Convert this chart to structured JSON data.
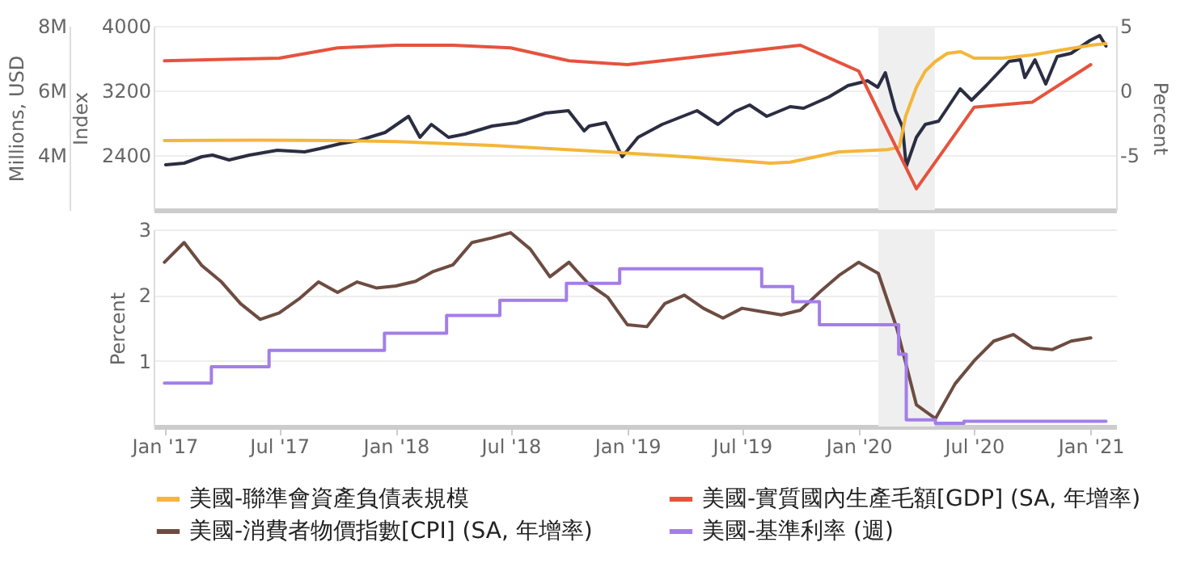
{
  "chart_data": [
    {
      "type": "line",
      "xlim": [
        "2016-12-15",
        "2021-02-10"
      ],
      "ylabel": "Index",
      "ylim": [
        1720,
        4000
      ],
      "yticks": [
        2400,
        3200,
        4000
      ],
      "y2label": "Percent",
      "y2lim": [
        -9.25,
        5
      ],
      "y2ticks": [
        -5,
        0,
        5
      ],
      "y3label": "Millions, USD",
      "y3lim": [
        2300000,
        8000000
      ],
      "y3ticks": [
        {
          "value": 4000000,
          "label": "4M"
        },
        {
          "value": 6000000,
          "label": "6M"
        },
        {
          "value": 8000000,
          "label": "8M"
        }
      ],
      "grid": "y",
      "legend": "bottom",
      "tick_labels": "y",
      "bands": [
        {
          "axis": "x",
          "from": "2020-02-01",
          "to": "2020-04-30",
          "color": "#efefef"
        }
      ],
      "series": [
        {
          "color": "#2b2d42",
          "axis": "y",
          "x": [
            "2017-01-03",
            "2017-02-01",
            "2017-03-01",
            "2017-03-18",
            "2017-04-13",
            "2017-05-15",
            "2017-06-28",
            "2017-08-10",
            "2017-09-03",
            "2017-10-05",
            "2017-11-03",
            "2017-12-15",
            "2018-01-21",
            "2018-02-08",
            "2018-02-26",
            "2018-03-25",
            "2018-04-20",
            "2018-06-02",
            "2018-07-10",
            "2018-08-25",
            "2018-09-30",
            "2018-10-25",
            "2018-11-02",
            "2018-11-28",
            "2018-12-24",
            "2019-01-18",
            "2019-02-25",
            "2019-04-21",
            "2019-05-24",
            "2019-06-20",
            "2019-07-13",
            "2019-08-09",
            "2019-09-15",
            "2019-10-06",
            "2019-11-15",
            "2019-12-15",
            "2020-01-15",
            "2020-01-31",
            "2020-02-12",
            "2020-02-28",
            "2020-03-10",
            "2020-03-16",
            "2020-04-01",
            "2020-04-15",
            "2020-05-06",
            "2020-06-09",
            "2020-06-27",
            "2020-07-20",
            "2020-08-25",
            "2020-09-12",
            "2020-09-19",
            "2020-10-05",
            "2020-10-22",
            "2020-11-09",
            "2020-12-01",
            "2020-12-31",
            "2021-01-15",
            "2021-01-25"
          ],
          "values": [
            2280,
            2300,
            2380,
            2400,
            2340,
            2400,
            2460,
            2440,
            2480,
            2540,
            2580,
            2680,
            2880,
            2620,
            2780,
            2620,
            2660,
            2760,
            2800,
            2920,
            2950,
            2700,
            2760,
            2800,
            2380,
            2620,
            2780,
            2950,
            2780,
            2940,
            3020,
            2880,
            3000,
            2980,
            3120,
            3260,
            3320,
            3240,
            3420,
            2950,
            2750,
            2260,
            2620,
            2780,
            2820,
            3220,
            3080,
            3260,
            3560,
            3580,
            3360,
            3580,
            3280,
            3620,
            3660,
            3820,
            3880,
            3750
          ]
        },
        {
          "name": "美國-聯準會資產負債表規模",
          "color": "#f4b63a",
          "axis": "y3",
          "x": [
            "2017-01-01",
            "2017-06-01",
            "2017-10-01",
            "2018-01-01",
            "2018-06-01",
            "2018-12-01",
            "2019-04-01",
            "2019-08-15",
            "2019-09-15",
            "2019-12-01",
            "2020-02-15",
            "2020-03-05",
            "2020-03-15",
            "2020-04-01",
            "2020-04-15",
            "2020-05-01",
            "2020-05-20",
            "2020-06-10",
            "2020-07-01",
            "2020-08-15",
            "2020-10-01",
            "2020-11-15",
            "2021-01-01",
            "2021-01-25"
          ],
          "values": [
            4450000,
            4460000,
            4450000,
            4420000,
            4300000,
            4100000,
            3950000,
            3750000,
            3780000,
            4100000,
            4170000,
            4240000,
            5200000,
            6100000,
            6600000,
            6900000,
            7150000,
            7200000,
            7000000,
            7000000,
            7100000,
            7250000,
            7400000,
            7450000
          ]
        },
        {
          "name": "美國-實質國內生產毛額[GDP] (SA, 年增率)",
          "color": "#e5533d",
          "axis": "y2",
          "x": [
            "2017-01-01",
            "2017-07-01",
            "2017-10-01",
            "2018-01-01",
            "2018-04-01",
            "2018-07-01",
            "2018-10-01",
            "2019-01-01",
            "2019-10-01",
            "2020-01-01",
            "2020-04-01",
            "2020-07-01",
            "2020-10-01",
            "2021-01-01"
          ],
          "values": [
            2.3,
            2.5,
            3.3,
            3.5,
            3.5,
            3.3,
            2.3,
            2.0,
            3.5,
            1.5,
            -7.6,
            -1.3,
            -0.9,
            2.0
          ]
        }
      ]
    },
    {
      "type": "line",
      "xlim": [
        "2016-12-15",
        "2021-02-10"
      ],
      "xticks": [
        {
          "value": "2017-01-01",
          "label": "Jan '17"
        },
        {
          "value": "2017-07-01",
          "label": "Jul '17"
        },
        {
          "value": "2018-01-01",
          "label": "Jan '18"
        },
        {
          "value": "2018-07-01",
          "label": "Jul '18"
        },
        {
          "value": "2019-01-01",
          "label": "Jan '19"
        },
        {
          "value": "2019-07-01",
          "label": "Jul '19"
        },
        {
          "value": "2020-01-01",
          "label": "Jan '20"
        },
        {
          "value": "2020-07-01",
          "label": "Jul '20"
        },
        {
          "value": "2021-01-01",
          "label": "Jan '21"
        }
      ],
      "ylabel": "Percent",
      "ylim": [
        0,
        3
      ],
      "yticks": [
        1,
        2,
        3
      ],
      "grid": "y",
      "legend": "bottom",
      "bands": [
        {
          "axis": "x",
          "from": "2020-02-01",
          "to": "2020-04-30",
          "color": "#efefef"
        }
      ],
      "series": [
        {
          "name": "美國-消費者物價指數[CPI] (SA, 年增率)",
          "color": "#6d4c41",
          "x": [
            "2017-01-01",
            "2017-02-01",
            "2017-03-01",
            "2017-04-01",
            "2017-05-01",
            "2017-06-01",
            "2017-07-01",
            "2017-08-01",
            "2017-09-01",
            "2017-10-01",
            "2017-11-01",
            "2017-12-01",
            "2018-01-01",
            "2018-02-01",
            "2018-03-01",
            "2018-04-01",
            "2018-05-01",
            "2018-06-01",
            "2018-07-01",
            "2018-08-01",
            "2018-09-01",
            "2018-10-01",
            "2018-11-01",
            "2018-12-01",
            "2019-01-01",
            "2019-02-01",
            "2019-03-01",
            "2019-04-01",
            "2019-05-01",
            "2019-06-01",
            "2019-07-01",
            "2019-08-01",
            "2019-09-01",
            "2019-10-01",
            "2019-11-01",
            "2019-12-01",
            "2020-01-01",
            "2020-02-01",
            "2020-03-01",
            "2020-04-01",
            "2020-05-01",
            "2020-06-01",
            "2020-07-01",
            "2020-08-01",
            "2020-09-01",
            "2020-10-01",
            "2020-11-01",
            "2020-12-01",
            "2021-01-01"
          ],
          "values": [
            2.5,
            2.8,
            2.45,
            2.2,
            1.87,
            1.63,
            1.73,
            1.94,
            2.2,
            2.04,
            2.2,
            2.11,
            2.14,
            2.21,
            2.36,
            2.46,
            2.8,
            2.87,
            2.95,
            2.7,
            2.28,
            2.5,
            2.17,
            1.97,
            1.55,
            1.52,
            1.87,
            2.0,
            1.8,
            1.65,
            1.8,
            1.75,
            1.7,
            1.77,
            2.05,
            2.3,
            2.5,
            2.33,
            1.5,
            0.33,
            0.12,
            0.65,
            1.0,
            1.3,
            1.4,
            1.2,
            1.17,
            1.3,
            1.35
          ]
        },
        {
          "name": "美國-基準利率 (週)",
          "color": "#a37ee8",
          "type": "step",
          "x": [
            "2017-01-01",
            "2017-03-16",
            "2017-06-15",
            "2017-12-14",
            "2018-03-22",
            "2018-06-14",
            "2018-09-27",
            "2018-12-20",
            "2019-08-01",
            "2019-09-19",
            "2019-10-31",
            "2020-03-04",
            "2020-03-16",
            "2020-05-01",
            "2020-06-15",
            "2021-01-25"
          ],
          "values": [
            0.66,
            0.91,
            1.16,
            1.42,
            1.69,
            1.92,
            2.18,
            2.4,
            2.13,
            1.9,
            1.55,
            1.1,
            0.1,
            0.05,
            0.08,
            0.08
          ]
        }
      ]
    }
  ]
}
